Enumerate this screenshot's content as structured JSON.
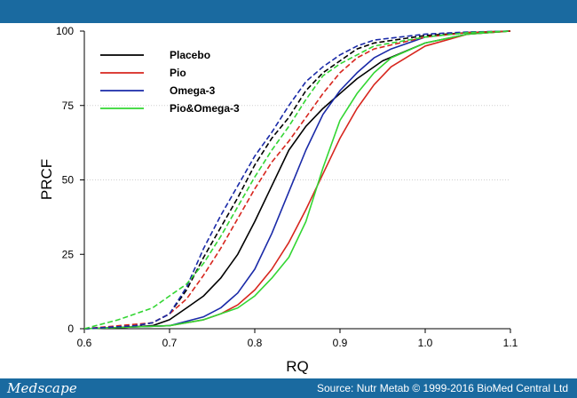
{
  "footer": {
    "logo": "Medscape",
    "source": "Source: Nutr Metab © 1999-2016 BioMed Central Ltd"
  },
  "colors": {
    "header_bar": "#1a6aa0",
    "Placebo": "#000000",
    "Pio": "#d7261e",
    "Omega-3": "#1a2aa8",
    "Pio&Omega-3": "#33d633"
  },
  "chart_data": {
    "type": "line",
    "xlabel": "RQ",
    "ylabel": "PRCF",
    "xlim": [
      0.6,
      1.1
    ],
    "ylim": [
      0,
      100
    ],
    "xticks": [
      "0.6",
      "0.7",
      "0.8",
      "0.9",
      "1.0",
      "1.1"
    ],
    "yticks": [
      "0",
      "25",
      "50",
      "75",
      "100"
    ],
    "grid": "horizontal dotted at 50 and 75",
    "legend_position": "top-left",
    "legend": [
      "Placebo",
      "Pio",
      "Omega-3",
      "Pio&Omega-3"
    ],
    "series": [
      {
        "name": "Placebo",
        "style": "solid",
        "color": "#000000",
        "x": [
          0.6,
          0.65,
          0.68,
          0.7,
          0.72,
          0.74,
          0.76,
          0.78,
          0.8,
          0.82,
          0.84,
          0.86,
          0.88,
          0.9,
          0.92,
          0.95,
          1.0,
          1.05,
          1.1
        ],
        "y": [
          0,
          0.5,
          1,
          3,
          7,
          11,
          17,
          25,
          36,
          48,
          60,
          68,
          74,
          79,
          84,
          90,
          96,
          99,
          100
        ]
      },
      {
        "name": "Pio",
        "style": "solid",
        "color": "#d7261e",
        "x": [
          0.6,
          0.7,
          0.74,
          0.76,
          0.78,
          0.8,
          0.82,
          0.84,
          0.86,
          0.88,
          0.9,
          0.92,
          0.94,
          0.96,
          1.0,
          1.05,
          1.1
        ],
        "y": [
          0,
          1,
          3,
          5,
          8,
          13,
          20,
          29,
          40,
          52,
          64,
          74,
          82,
          88,
          95,
          99,
          100
        ]
      },
      {
        "name": "Omega-3",
        "style": "solid",
        "color": "#1a2aa8",
        "x": [
          0.6,
          0.7,
          0.74,
          0.76,
          0.78,
          0.8,
          0.82,
          0.84,
          0.86,
          0.88,
          0.9,
          0.92,
          0.94,
          0.96,
          1.0,
          1.05,
          1.1
        ],
        "y": [
          0,
          1,
          4,
          7,
          12,
          20,
          32,
          46,
          60,
          72,
          80,
          86,
          91,
          94,
          98,
          99.5,
          100
        ]
      },
      {
        "name": "Pio&Omega-3",
        "style": "solid",
        "color": "#33d633",
        "x": [
          0.6,
          0.7,
          0.74,
          0.76,
          0.78,
          0.8,
          0.82,
          0.84,
          0.86,
          0.88,
          0.9,
          0.92,
          0.94,
          0.96,
          1.0,
          1.05,
          1.1
        ],
        "y": [
          0,
          1,
          3,
          5,
          7,
          11,
          17,
          24,
          36,
          54,
          70,
          79,
          86,
          91,
          96,
          99,
          100
        ]
      },
      {
        "name": "Placebo",
        "style": "dashed",
        "color": "#000000",
        "x": [
          0.6,
          0.66,
          0.68,
          0.7,
          0.72,
          0.74,
          0.76,
          0.78,
          0.8,
          0.82,
          0.84,
          0.86,
          0.88,
          0.9,
          0.92,
          0.94,
          1.0,
          1.05,
          1.1
        ],
        "y": [
          0,
          1,
          2,
          5,
          13,
          24,
          34,
          44,
          55,
          64,
          71,
          80,
          86,
          90,
          94,
          96,
          98.5,
          99.5,
          100
        ]
      },
      {
        "name": "Pio",
        "style": "dashed",
        "color": "#d7261e",
        "x": [
          0.6,
          0.68,
          0.7,
          0.72,
          0.74,
          0.76,
          0.78,
          0.8,
          0.82,
          0.84,
          0.86,
          0.88,
          0.9,
          0.92,
          0.94,
          1.0,
          1.05,
          1.1
        ],
        "y": [
          0,
          2,
          5,
          10,
          18,
          27,
          37,
          47,
          56,
          63,
          71,
          79,
          86,
          91,
          94,
          98,
          99.5,
          100
        ]
      },
      {
        "name": "Omega-3",
        "style": "dashed",
        "color": "#1a2aa8",
        "x": [
          0.6,
          0.66,
          0.68,
          0.7,
          0.72,
          0.74,
          0.76,
          0.78,
          0.8,
          0.82,
          0.84,
          0.86,
          0.88,
          0.9,
          0.92,
          0.94,
          1.0,
          1.05,
          1.1
        ],
        "y": [
          0,
          1,
          2,
          5,
          14,
          27,
          38,
          48,
          58,
          66,
          75,
          83,
          88,
          92,
          95,
          97,
          99,
          99.7,
          100
        ]
      },
      {
        "name": "Pio&Omega-3",
        "style": "dashed",
        "color": "#33d633",
        "x": [
          0.6,
          0.64,
          0.68,
          0.7,
          0.72,
          0.74,
          0.76,
          0.78,
          0.8,
          0.82,
          0.84,
          0.86,
          0.88,
          0.9,
          0.92,
          0.94,
          1.0,
          1.05,
          1.1
        ],
        "y": [
          0,
          3,
          7,
          11,
          15,
          22,
          31,
          41,
          51,
          60,
          68,
          77,
          85,
          89,
          92,
          95,
          98,
          99.5,
          100
        ]
      }
    ]
  }
}
